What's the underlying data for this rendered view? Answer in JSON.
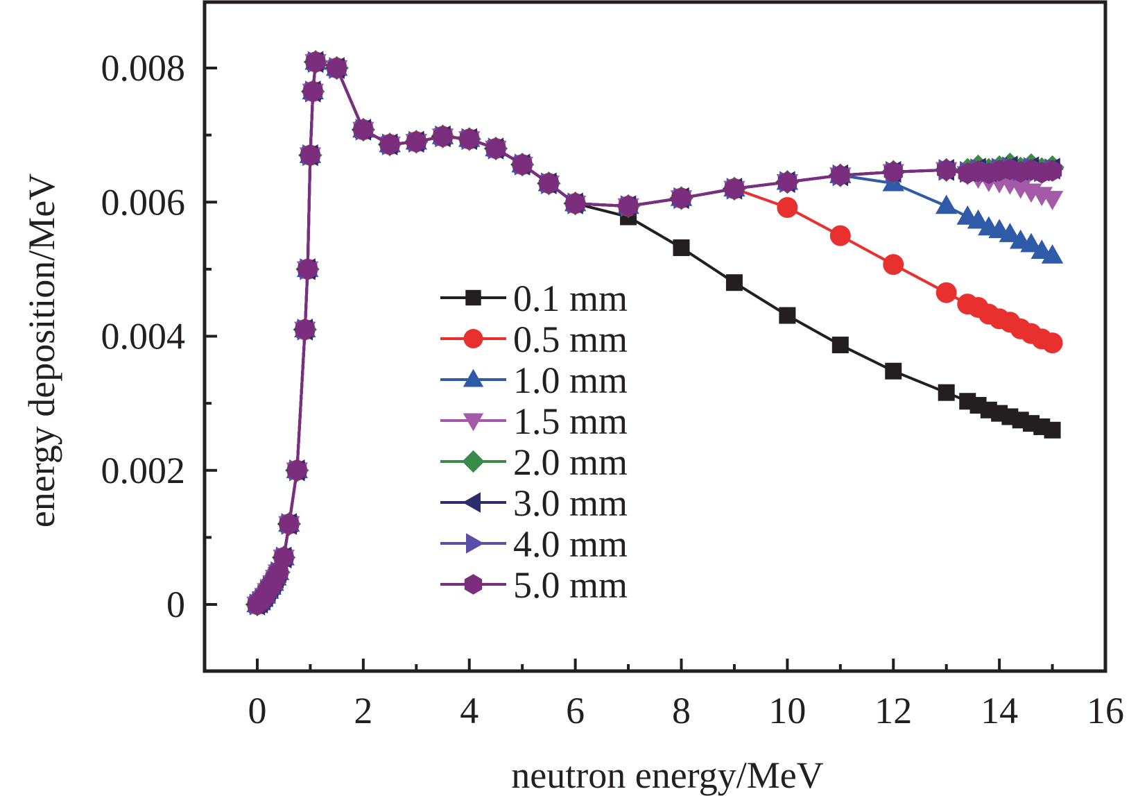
{
  "chart_data": {
    "type": "line",
    "title": "",
    "xlabel": "neutron energy/MeV",
    "ylabel": "energy deposition/MeV",
    "xlim": [
      -1,
      16
    ],
    "ylim": [
      -0.001,
      0.009
    ],
    "xticks": [
      0,
      2,
      4,
      6,
      8,
      10,
      12,
      14,
      16
    ],
    "xtick_labels": [
      "0",
      "2",
      "4",
      "6",
      "8",
      "10",
      "12",
      "14",
      "16"
    ],
    "yticks": [
      0,
      0.002,
      0.004,
      0.006,
      0.008
    ],
    "ytick_labels": [
      "0",
      "0.002",
      "0.004",
      "0.006",
      "0.008"
    ],
    "grid": false,
    "legend_position": "center",
    "series": [
      {
        "name": "0.1 mm",
        "color": "#231f20",
        "marker": "square",
        "x": [
          0,
          0.05,
          0.1,
          0.15,
          0.2,
          0.25,
          0.3,
          0.35,
          0.4,
          0.5,
          0.6,
          0.75,
          0.9,
          0.95,
          1.0,
          1.05,
          1.1,
          1.5,
          2,
          2.5,
          3,
          3.5,
          4,
          4.5,
          5,
          5.5,
          6,
          7,
          8,
          9,
          10,
          11,
          12,
          13,
          13.4,
          13.6,
          13.8,
          14,
          14.2,
          14.4,
          14.6,
          14.8,
          15
        ],
        "y": [
          0,
          3e-05,
          8e-05,
          0.00013,
          0.0002,
          0.00026,
          0.00032,
          0.0004,
          0.00048,
          0.0007,
          0.0012,
          0.002,
          0.0041,
          0.005,
          0.0067,
          0.00765,
          0.00809,
          0.008,
          0.00708,
          0.00686,
          0.0069,
          0.00698,
          0.00694,
          0.0068,
          0.00656,
          0.00628,
          0.00598,
          0.00578,
          0.00532,
          0.0048,
          0.00431,
          0.00387,
          0.00348,
          0.00316,
          0.00303,
          0.00297,
          0.0029,
          0.00285,
          0.0028,
          0.00275,
          0.0027,
          0.00265,
          0.0026
        ]
      },
      {
        "name": "0.5 mm",
        "color": "#e8312f",
        "marker": "circle",
        "x": [
          0,
          0.05,
          0.1,
          0.15,
          0.2,
          0.25,
          0.3,
          0.35,
          0.4,
          0.5,
          0.6,
          0.75,
          0.9,
          0.95,
          1.0,
          1.05,
          1.1,
          1.5,
          2,
          2.5,
          3,
          3.5,
          4,
          4.5,
          5,
          5.5,
          6,
          7,
          8,
          9,
          10,
          11,
          12,
          13,
          13.4,
          13.6,
          13.8,
          14,
          14.2,
          14.4,
          14.6,
          14.8,
          15
        ],
        "y": [
          0,
          3e-05,
          8e-05,
          0.00013,
          0.0002,
          0.00026,
          0.00032,
          0.0004,
          0.00048,
          0.0007,
          0.0012,
          0.002,
          0.0041,
          0.005,
          0.0067,
          0.00765,
          0.00809,
          0.008,
          0.00708,
          0.00686,
          0.0069,
          0.00698,
          0.00694,
          0.0068,
          0.00656,
          0.00628,
          0.00598,
          0.00594,
          0.00606,
          0.0062,
          0.00592,
          0.0055,
          0.00507,
          0.00465,
          0.00448,
          0.00443,
          0.00433,
          0.00426,
          0.00421,
          0.00411,
          0.00404,
          0.00396,
          0.0039
        ]
      },
      {
        "name": "1.0 mm",
        "color": "#2f5aa8",
        "marker": "triangle-up",
        "x": [
          0,
          0.05,
          0.1,
          0.15,
          0.2,
          0.25,
          0.3,
          0.35,
          0.4,
          0.5,
          0.6,
          0.75,
          0.9,
          0.95,
          1.0,
          1.05,
          1.1,
          1.5,
          2,
          2.5,
          3,
          3.5,
          4,
          4.5,
          5,
          5.5,
          6,
          7,
          8,
          9,
          10,
          11,
          12,
          13,
          13.4,
          13.6,
          13.8,
          14,
          14.2,
          14.4,
          14.6,
          14.8,
          15
        ],
        "y": [
          0,
          3e-05,
          8e-05,
          0.00013,
          0.0002,
          0.00026,
          0.00032,
          0.0004,
          0.00048,
          0.0007,
          0.0012,
          0.002,
          0.0041,
          0.005,
          0.0067,
          0.00765,
          0.00809,
          0.008,
          0.00708,
          0.00686,
          0.0069,
          0.00698,
          0.00694,
          0.0068,
          0.00656,
          0.00628,
          0.00598,
          0.00594,
          0.00606,
          0.0062,
          0.0063,
          0.0064,
          0.00628,
          0.00594,
          0.00578,
          0.00572,
          0.00562,
          0.00558,
          0.00552,
          0.00542,
          0.00537,
          0.00527,
          0.0052
        ]
      },
      {
        "name": "1.5 mm",
        "color": "#a45aa8",
        "marker": "triangle-down",
        "x": [
          0,
          0.05,
          0.1,
          0.15,
          0.2,
          0.25,
          0.3,
          0.35,
          0.4,
          0.5,
          0.6,
          0.75,
          0.9,
          0.95,
          1.0,
          1.05,
          1.1,
          1.5,
          2,
          2.5,
          3,
          3.5,
          4,
          4.5,
          5,
          5.5,
          6,
          7,
          8,
          9,
          10,
          11,
          12,
          13,
          13.4,
          13.6,
          13.8,
          14,
          14.2,
          14.4,
          14.6,
          14.8,
          15
        ],
        "y": [
          0,
          3e-05,
          8e-05,
          0.00013,
          0.0002,
          0.00026,
          0.00032,
          0.0004,
          0.00048,
          0.0007,
          0.0012,
          0.002,
          0.0041,
          0.005,
          0.0067,
          0.00765,
          0.00809,
          0.008,
          0.00708,
          0.00686,
          0.0069,
          0.00698,
          0.00694,
          0.0068,
          0.00656,
          0.00628,
          0.00598,
          0.00594,
          0.00606,
          0.0062,
          0.0063,
          0.0064,
          0.00645,
          0.00648,
          0.00642,
          0.00637,
          0.00632,
          0.0063,
          0.00628,
          0.00622,
          0.00616,
          0.00611,
          0.00605
        ]
      },
      {
        "name": "2.0 mm",
        "color": "#3a8a4a",
        "marker": "diamond",
        "x": [
          0,
          0.05,
          0.1,
          0.15,
          0.2,
          0.25,
          0.3,
          0.35,
          0.4,
          0.5,
          0.6,
          0.75,
          0.9,
          0.95,
          1.0,
          1.05,
          1.1,
          1.5,
          2,
          2.5,
          3,
          3.5,
          4,
          4.5,
          5,
          5.5,
          6,
          7,
          8,
          9,
          10,
          11,
          12,
          13,
          13.4,
          13.6,
          13.8,
          14,
          14.2,
          14.4,
          14.6,
          14.8,
          15
        ],
        "y": [
          0,
          3e-05,
          8e-05,
          0.00013,
          0.0002,
          0.00026,
          0.00032,
          0.0004,
          0.00048,
          0.0007,
          0.0012,
          0.002,
          0.0041,
          0.005,
          0.0067,
          0.00765,
          0.00809,
          0.008,
          0.00708,
          0.00686,
          0.0069,
          0.00698,
          0.00694,
          0.0068,
          0.00656,
          0.00628,
          0.00598,
          0.00594,
          0.00606,
          0.0062,
          0.0063,
          0.0064,
          0.00645,
          0.00648,
          0.00648,
          0.00653,
          0.00648,
          0.00652,
          0.00656,
          0.0065,
          0.00655,
          0.00649,
          0.00652
        ]
      },
      {
        "name": "3.0 mm",
        "color": "#2e2d6b",
        "marker": "triangle-left",
        "x": [
          0,
          0.05,
          0.1,
          0.15,
          0.2,
          0.25,
          0.3,
          0.35,
          0.4,
          0.5,
          0.6,
          0.75,
          0.9,
          0.95,
          1.0,
          1.05,
          1.1,
          1.5,
          2,
          2.5,
          3,
          3.5,
          4,
          4.5,
          5,
          5.5,
          6,
          7,
          8,
          9,
          10,
          11,
          12,
          13,
          13.4,
          13.6,
          13.8,
          14,
          14.2,
          14.4,
          14.6,
          14.8,
          15
        ],
        "y": [
          0,
          3e-05,
          8e-05,
          0.00013,
          0.0002,
          0.00026,
          0.00032,
          0.0004,
          0.00048,
          0.0007,
          0.0012,
          0.002,
          0.0041,
          0.005,
          0.0067,
          0.00765,
          0.00809,
          0.008,
          0.00708,
          0.00686,
          0.0069,
          0.00698,
          0.00694,
          0.0068,
          0.00656,
          0.00628,
          0.00598,
          0.00594,
          0.00606,
          0.0062,
          0.0063,
          0.0064,
          0.00645,
          0.00648,
          0.00646,
          0.0065,
          0.00646,
          0.00651,
          0.00653,
          0.00648,
          0.00652,
          0.00647,
          0.0065
        ]
      },
      {
        "name": "4.0 mm",
        "color": "#5a4fa8",
        "marker": "triangle-right",
        "x": [
          0,
          0.05,
          0.1,
          0.15,
          0.2,
          0.25,
          0.3,
          0.35,
          0.4,
          0.5,
          0.6,
          0.75,
          0.9,
          0.95,
          1.0,
          1.05,
          1.1,
          1.5,
          2,
          2.5,
          3,
          3.5,
          4,
          4.5,
          5,
          5.5,
          6,
          7,
          8,
          9,
          10,
          11,
          12,
          13,
          13.4,
          13.6,
          13.8,
          14,
          14.2,
          14.4,
          14.6,
          14.8,
          15
        ],
        "y": [
          0,
          3e-05,
          8e-05,
          0.00013,
          0.0002,
          0.00026,
          0.00032,
          0.0004,
          0.00048,
          0.0007,
          0.0012,
          0.002,
          0.0041,
          0.005,
          0.0067,
          0.00765,
          0.00809,
          0.008,
          0.00708,
          0.00686,
          0.0069,
          0.00698,
          0.00694,
          0.0068,
          0.00656,
          0.00628,
          0.00598,
          0.00594,
          0.00606,
          0.0062,
          0.0063,
          0.0064,
          0.00645,
          0.00648,
          0.00645,
          0.00649,
          0.00645,
          0.0065,
          0.00652,
          0.00647,
          0.00651,
          0.00646,
          0.00649
        ]
      },
      {
        "name": "5.0 mm",
        "color": "#7b2d7e",
        "marker": "hexagon",
        "x": [
          0,
          0.05,
          0.1,
          0.15,
          0.2,
          0.25,
          0.3,
          0.35,
          0.4,
          0.5,
          0.6,
          0.75,
          0.9,
          0.95,
          1.0,
          1.05,
          1.1,
          1.5,
          2,
          2.5,
          3,
          3.5,
          4,
          4.5,
          5,
          5.5,
          6,
          7,
          8,
          9,
          10,
          11,
          12,
          13,
          13.4,
          13.6,
          13.8,
          14,
          14.2,
          14.4,
          14.6,
          14.8,
          15
        ],
        "y": [
          0,
          3e-05,
          8e-05,
          0.00013,
          0.0002,
          0.00026,
          0.00032,
          0.0004,
          0.00048,
          0.0007,
          0.0012,
          0.002,
          0.0041,
          0.005,
          0.0067,
          0.00765,
          0.00809,
          0.008,
          0.00708,
          0.00686,
          0.0069,
          0.00698,
          0.00694,
          0.0068,
          0.00656,
          0.00628,
          0.00598,
          0.00594,
          0.00606,
          0.0062,
          0.0063,
          0.0064,
          0.00645,
          0.00648,
          0.00643,
          0.00646,
          0.00643,
          0.00647,
          0.00649,
          0.00645,
          0.00648,
          0.00644,
          0.00647
        ]
      }
    ]
  }
}
